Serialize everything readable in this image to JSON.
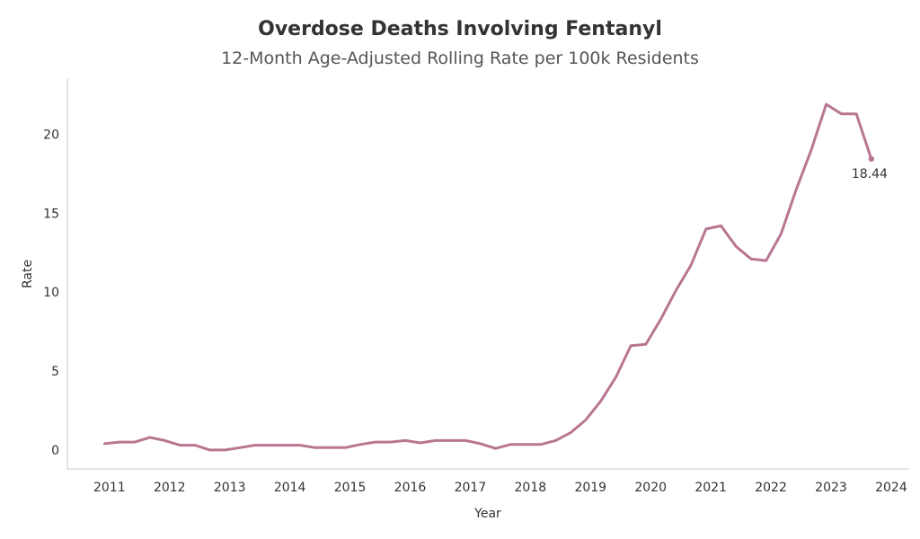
{
  "chart_data": {
    "type": "line",
    "title": "Overdose Deaths Involving Fentanyl",
    "subtitle": "12-Month Age-Adjusted Rolling Rate per 100k Residents",
    "xlabel": "Year",
    "ylabel": "Rate",
    "xlim": [
      2010.3,
      2024.3
    ],
    "ylim": [
      -1.2,
      23.5
    ],
    "x_ticks": [
      2011,
      2012,
      2013,
      2014,
      2015,
      2016,
      2017,
      2018,
      2019,
      2020,
      2021,
      2022,
      2023,
      2024
    ],
    "x_tick_labels": [
      "2011",
      "2012",
      "2013",
      "2014",
      "2015",
      "2016",
      "2017",
      "2018",
      "2019",
      "2020",
      "2021",
      "2022",
      "2023",
      "2024"
    ],
    "y_ticks": [
      0,
      5,
      10,
      15,
      20
    ],
    "y_tick_labels": [
      "0",
      "5",
      "10",
      "15",
      "20"
    ],
    "grid": false,
    "line_color": "#b87692",
    "series": [
      {
        "name": "Fentanyl overdose death rate",
        "x": [
          2010.92,
          2011.17,
          2011.42,
          2011.67,
          2011.92,
          2012.17,
          2012.42,
          2012.67,
          2012.92,
          2013.17,
          2013.42,
          2013.67,
          2013.92,
          2014.17,
          2014.42,
          2014.67,
          2014.92,
          2015.17,
          2015.42,
          2015.67,
          2015.92,
          2016.17,
          2016.42,
          2016.67,
          2016.92,
          2017.17,
          2017.42,
          2017.67,
          2017.92,
          2018.17,
          2018.42,
          2018.67,
          2018.92,
          2019.17,
          2019.42,
          2019.67,
          2019.92,
          2020.17,
          2020.42,
          2020.67,
          2020.92,
          2021.17,
          2021.42,
          2021.67,
          2021.92,
          2022.17,
          2022.42,
          2022.67,
          2022.92,
          2023.17,
          2023.42,
          2023.67
        ],
        "values": [
          0.4,
          0.5,
          0.5,
          0.8,
          0.6,
          0.3,
          0.3,
          0.0,
          0.0,
          0.15,
          0.3,
          0.3,
          0.3,
          0.3,
          0.15,
          0.15,
          0.15,
          0.35,
          0.5,
          0.5,
          0.6,
          0.45,
          0.6,
          0.6,
          0.6,
          0.4,
          0.1,
          0.35,
          0.35,
          0.35,
          0.6,
          1.1,
          1.9,
          3.1,
          4.6,
          6.6,
          6.7,
          8.3,
          10.1,
          11.7,
          14.0,
          14.2,
          12.9,
          12.1,
          12.0,
          13.7,
          16.5,
          19.0,
          21.9,
          21.3,
          21.3,
          18.44
        ]
      }
    ],
    "annotations": [
      {
        "label": "18.44",
        "x": 2023.67,
        "y": 18.44
      }
    ]
  }
}
